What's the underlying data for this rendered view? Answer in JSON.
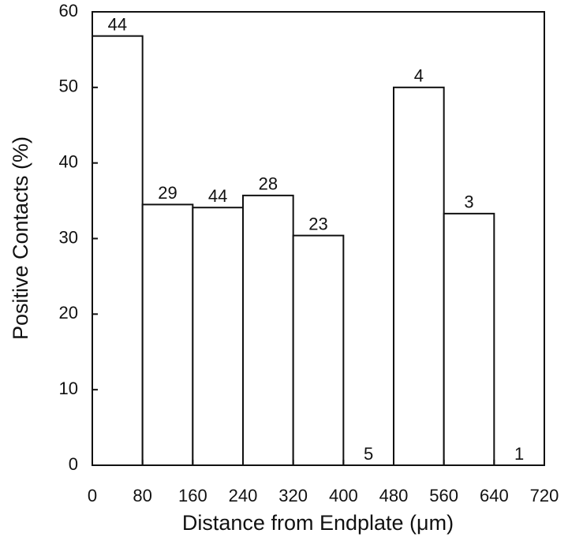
{
  "chart_data": {
    "type": "histogram",
    "xlabel": "Distance from Endplate (μm)",
    "ylabel": "Positive Contacts (%)",
    "bins": [
      0,
      80,
      160,
      240,
      320,
      400,
      480,
      560,
      640,
      720
    ],
    "values": [
      56.8,
      34.5,
      34.1,
      35.7,
      30.4,
      0,
      50,
      33.3,
      0
    ],
    "n": [
      44,
      29,
      44,
      28,
      23,
      5,
      4,
      3,
      1
    ],
    "color": "#ffffff",
    "xlim": [
      0,
      720
    ],
    "xticks": [
      0,
      80,
      160,
      240,
      320,
      400,
      480,
      560,
      640,
      720
    ],
    "ylim": [
      0,
      60
    ],
    "yticks": [
      0,
      10,
      20,
      30,
      40,
      50,
      60
    ],
    "grid": false
  }
}
